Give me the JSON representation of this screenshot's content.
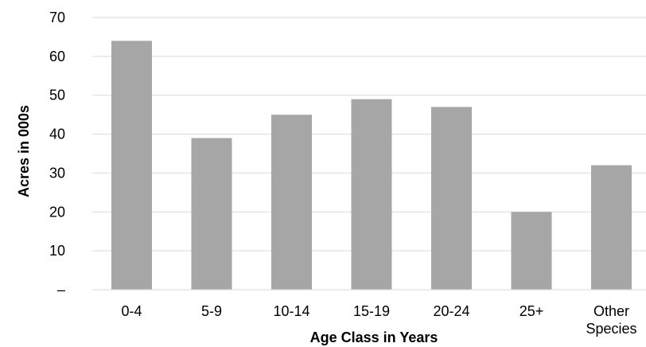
{
  "chart_data": {
    "type": "bar",
    "title": "",
    "xlabel": "Age Class in Years",
    "ylabel": "Acres in 000s",
    "categories": [
      [
        "0-4"
      ],
      [
        "5-9"
      ],
      [
        "10-14"
      ],
      [
        "15-19"
      ],
      [
        "20-24"
      ],
      [
        "25+"
      ],
      [
        "Other",
        "Species"
      ]
    ],
    "values": [
      64,
      39,
      45,
      49,
      47,
      20,
      32
    ],
    "ylim": [
      0,
      70
    ],
    "yticks": [
      0,
      10,
      20,
      30,
      40,
      50,
      60,
      70
    ],
    "ytick_labels": [
      "–",
      "10",
      "20",
      "30",
      "40",
      "50",
      "60",
      "70"
    ],
    "grid": true,
    "legend": "none",
    "bar_color": "#a6a6a6",
    "grid_color": "#d9d9d9",
    "axis_color": "#d9d9d9"
  }
}
